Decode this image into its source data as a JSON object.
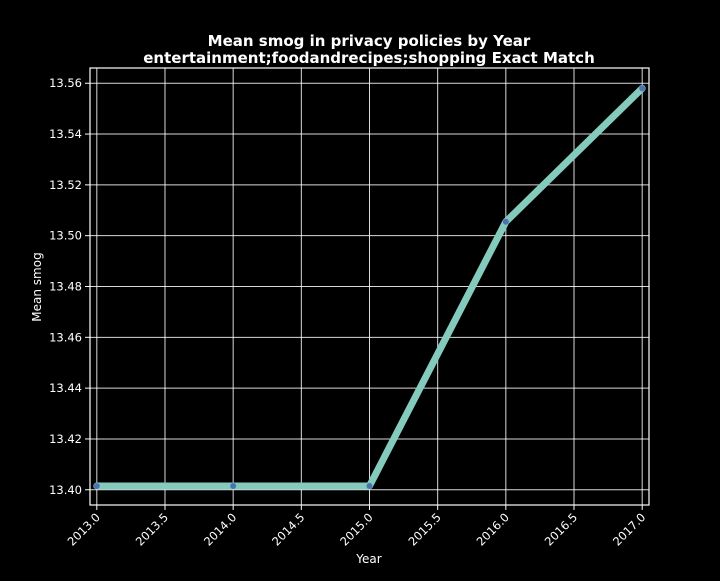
{
  "chart_data": {
    "type": "line",
    "title": "Mean smog in privacy policies by Year",
    "subtitle": "entertainment;foodandrecipes;shopping Exact Match",
    "xlabel": "Year",
    "ylabel": "Mean smog",
    "xlim": [
      2012.95,
      2017.05
    ],
    "ylim": [
      13.394,
      13.566
    ],
    "x_ticks": [
      2013.0,
      2013.5,
      2014.0,
      2014.5,
      2015.0,
      2015.5,
      2016.0,
      2016.5,
      2017.0
    ],
    "x_tick_labels": [
      "2013.0",
      "2013.5",
      "2014.0",
      "2014.5",
      "2015.0",
      "2015.5",
      "2016.0",
      "2016.5",
      "2017.0"
    ],
    "y_ticks": [
      13.4,
      13.42,
      13.44,
      13.46,
      13.48,
      13.5,
      13.52,
      13.54,
      13.56
    ],
    "y_tick_labels": [
      "13.40",
      "13.42",
      "13.44",
      "13.46",
      "13.48",
      "13.50",
      "13.52",
      "13.54",
      "13.56"
    ],
    "grid": true,
    "series": [
      {
        "x": [
          2013,
          2014,
          2015,
          2016,
          2017
        ],
        "values": [
          13.4015,
          13.4015,
          13.4015,
          13.5055,
          13.558
        ]
      }
    ],
    "colors": {
      "background": "#000000",
      "line": "#84cbbe",
      "marker": "#4c72b0",
      "text": "#ffffff",
      "grid": "#ffffff"
    }
  }
}
